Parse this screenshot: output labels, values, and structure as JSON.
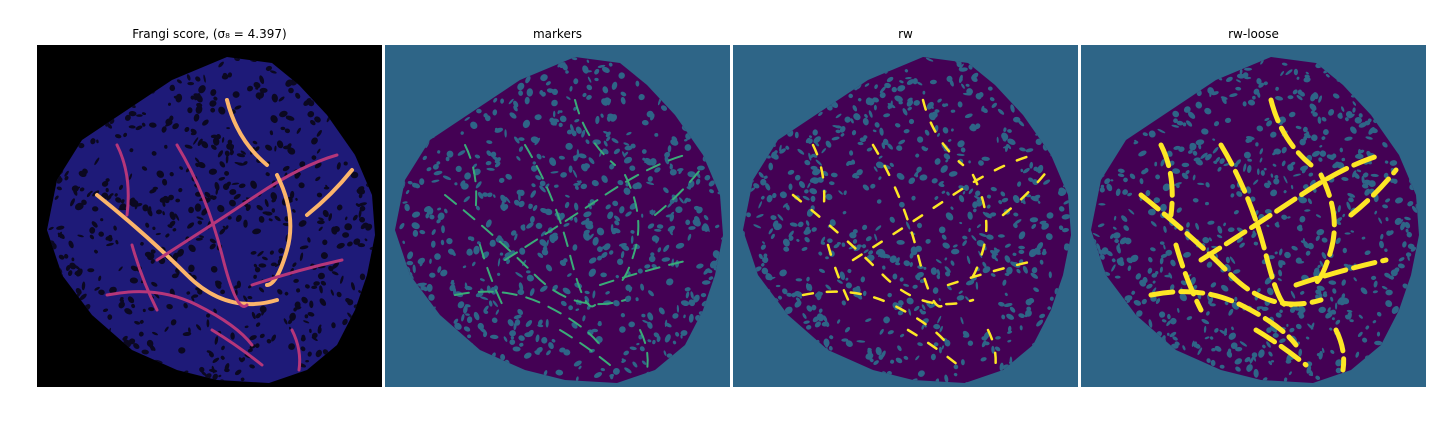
{
  "figure": {
    "panels": [
      {
        "title": "Frangi score, (σ₈ = 4.397)",
        "colormap": "magma"
      },
      {
        "title": "markers",
        "colormap": "viridis"
      },
      {
        "title": "rw",
        "colormap": "viridis"
      },
      {
        "title": "rw-loose",
        "colormap": "viridis"
      }
    ]
  },
  "colors": {
    "background_dark": "#000000",
    "background_blue": "#2e6587",
    "tissue": "#440154",
    "marker_green": "#3aab78",
    "vessel_yellow": "#fde725",
    "frangi_low": "#1e1a78",
    "frangi_mid": "#b5367a",
    "frangi_high": "#fcb56b"
  }
}
